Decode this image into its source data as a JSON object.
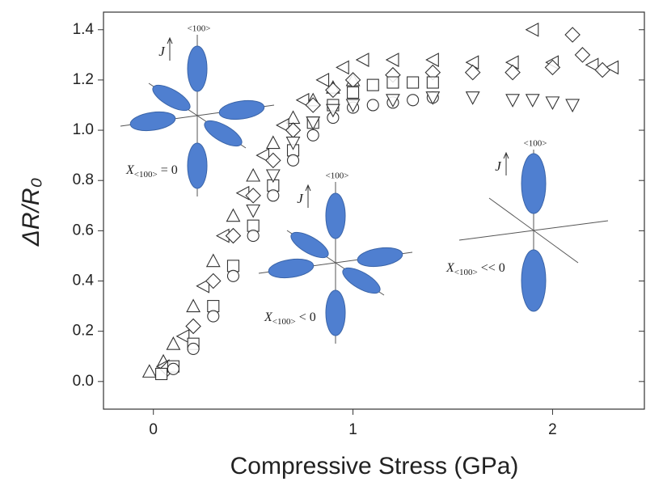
{
  "chart_data": {
    "type": "scatter",
    "x_label": "Compressive Stress (GPa)",
    "y_label": "ΔR/R₀",
    "xlim": [
      -0.25,
      2.46
    ],
    "ylim": [
      -0.11,
      1.47
    ],
    "xticks": [
      0,
      1,
      2
    ],
    "yticks": [
      {
        "value": 0,
        "label": "0.0"
      },
      0.2,
      0.4,
      0.6,
      0.8,
      {
        "value": 1,
        "label": "1.0"
      },
      1.2,
      1.4
    ],
    "series": [
      {
        "marker": "triangle-up",
        "color": "#333333",
        "x": [
          -0.02,
          0.05,
          0.1,
          0.2,
          0.3,
          0.4,
          0.5,
          0.6,
          0.7,
          0.8,
          0.9,
          1.0
        ],
        "values": [
          0.04,
          0.08,
          0.15,
          0.3,
          0.48,
          0.66,
          0.82,
          0.95,
          1.05,
          1.12,
          1.17,
          1.2
        ]
      },
      {
        "marker": "triangle-left",
        "color": "#333333",
        "x": [
          0.05,
          0.15,
          0.25,
          0.35,
          0.45,
          0.55,
          0.65,
          0.75,
          0.85,
          0.95,
          1.05,
          1.2,
          1.4,
          1.6,
          1.8,
          1.9,
          2.0,
          2.2,
          2.3
        ],
        "values": [
          0.06,
          0.18,
          0.38,
          0.58,
          0.75,
          0.9,
          1.02,
          1.12,
          1.2,
          1.25,
          1.28,
          1.28,
          1.28,
          1.27,
          1.27,
          1.4,
          1.27,
          1.26,
          1.25
        ]
      },
      {
        "marker": "diamond",
        "color": "#333333",
        "x": [
          0.07,
          0.2,
          0.3,
          0.4,
          0.5,
          0.6,
          0.7,
          0.8,
          0.9,
          1.0,
          1.2,
          1.4,
          1.6,
          1.8,
          2.0,
          2.1,
          2.15,
          2.25
        ],
        "values": [
          0.05,
          0.22,
          0.4,
          0.58,
          0.74,
          0.88,
          1.0,
          1.1,
          1.16,
          1.2,
          1.22,
          1.23,
          1.23,
          1.23,
          1.25,
          1.38,
          1.3,
          1.24
        ]
      },
      {
        "marker": "square",
        "color": "#333333",
        "x": [
          0.04,
          0.1,
          0.2,
          0.3,
          0.4,
          0.5,
          0.6,
          0.7,
          0.8,
          0.9,
          1.0,
          1.1,
          1.2,
          1.3,
          1.4
        ],
        "values": [
          0.03,
          0.06,
          0.15,
          0.3,
          0.46,
          0.62,
          0.78,
          0.92,
          1.03,
          1.1,
          1.15,
          1.18,
          1.19,
          1.19,
          1.19
        ]
      },
      {
        "marker": "circle",
        "color": "#333333",
        "x": [
          0.1,
          0.2,
          0.3,
          0.4,
          0.5,
          0.6,
          0.7,
          0.8,
          0.9,
          1.0,
          1.1,
          1.2,
          1.3,
          1.4
        ],
        "values": [
          0.05,
          0.13,
          0.26,
          0.42,
          0.58,
          0.74,
          0.88,
          0.98,
          1.05,
          1.09,
          1.1,
          1.11,
          1.12,
          1.13
        ]
      },
      {
        "marker": "triangle-down",
        "color": "#333333",
        "x": [
          0.5,
          0.6,
          0.7,
          0.8,
          0.9,
          1.0,
          1.2,
          1.4,
          1.6,
          1.8,
          1.9,
          2.0,
          2.1
        ],
        "values": [
          0.68,
          0.82,
          0.95,
          1.03,
          1.08,
          1.1,
          1.12,
          1.13,
          1.13,
          1.12,
          1.12,
          1.11,
          1.1
        ]
      }
    ],
    "insets": [
      {
        "direction": "<100>",
        "current": "J",
        "symbol": "X",
        "subscript": "<100>",
        "relation": "= 0"
      },
      {
        "direction": "<100>",
        "current": "J",
        "symbol": "X",
        "subscript": "<100>",
        "relation": "< 0"
      },
      {
        "direction": "<100>",
        "current": "J",
        "symbol": "X",
        "subscript": "<100>",
        "relation": "<< 0"
      }
    ]
  }
}
